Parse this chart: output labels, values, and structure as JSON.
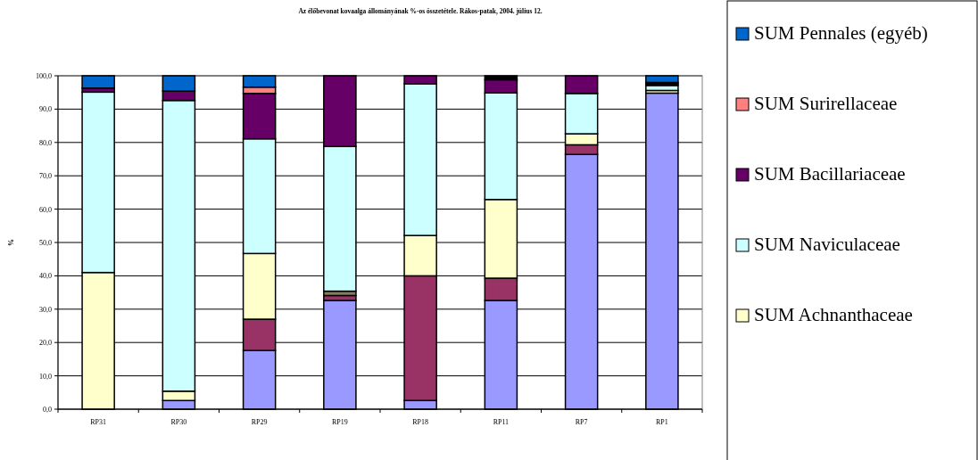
{
  "chart_data": {
    "type": "bar",
    "stacked": true,
    "title": "Az élőbevonat kovaalga állományának %-os összetétele. Rákos-patak, 2004. július 12.",
    "ylabel": "%",
    "categories": [
      "RP31",
      "RP30",
      "RP29",
      "RP19",
      "RP18",
      "RP11",
      "RP7",
      "RP1"
    ],
    "series": [
      {
        "color": "#9999ff",
        "values": [
          0,
          2.6,
          17.6,
          32.6,
          2.6,
          32.6,
          76.4,
          94.8
        ]
      },
      {
        "color": "#993366",
        "values": [
          0,
          0,
          9.4,
          1.5,
          37.4,
          6.7,
          2.9,
          0
        ]
      },
      {
        "color": "#808060",
        "values": [
          0,
          0,
          0,
          1.3,
          0,
          0,
          0,
          0
        ]
      },
      {
        "name": "SUM Achnanthaceae",
        "color": "#ffffcc",
        "values": [
          41.0,
          2.8,
          19.7,
          0,
          12.1,
          23.6,
          3.3,
          0.8
        ]
      },
      {
        "name": "SUM Naviculaceae",
        "color": "#ccffff",
        "values": [
          54.1,
          87.2,
          34.4,
          43.4,
          45.5,
          32.0,
          12.1,
          1.5
        ]
      },
      {
        "name": "SUM Bacillariaceae",
        "color": "#660066",
        "values": [
          1.2,
          2.8,
          13.6,
          21.2,
          2.4,
          3.9,
          5.3,
          0.5
        ]
      },
      {
        "name": "SUM Surirellaceae",
        "color": "#ff8080",
        "values": [
          0,
          0,
          1.9,
          0,
          0,
          0,
          0,
          0.4
        ]
      },
      {
        "name": "SUM Pennales (egyéb)",
        "color": "#0066cc",
        "values": [
          3.7,
          4.6,
          3.4,
          0,
          0,
          0,
          0,
          2.0
        ]
      },
      {
        "color": "#000000",
        "values": [
          0,
          0,
          0,
          0,
          0,
          1.2,
          0,
          0
        ]
      }
    ],
    "ylim": [
      0,
      100
    ],
    "yticks": [
      {
        "value": 0,
        "label": "0,0"
      },
      {
        "value": 10,
        "label": "10,0"
      },
      {
        "value": 20,
        "label": "20,0"
      },
      {
        "value": 30,
        "label": "30,0"
      },
      {
        "value": 40,
        "label": "40,0"
      },
      {
        "value": 50,
        "label": "50,0"
      },
      {
        "value": 60,
        "label": "60,0"
      },
      {
        "value": 70,
        "label": "70,0"
      },
      {
        "value": 80,
        "label": "80,0"
      },
      {
        "value": 90,
        "label": "90,0"
      },
      {
        "value": 100,
        "label": "100,0"
      }
    ],
    "grid": "y",
    "legend": "right"
  }
}
